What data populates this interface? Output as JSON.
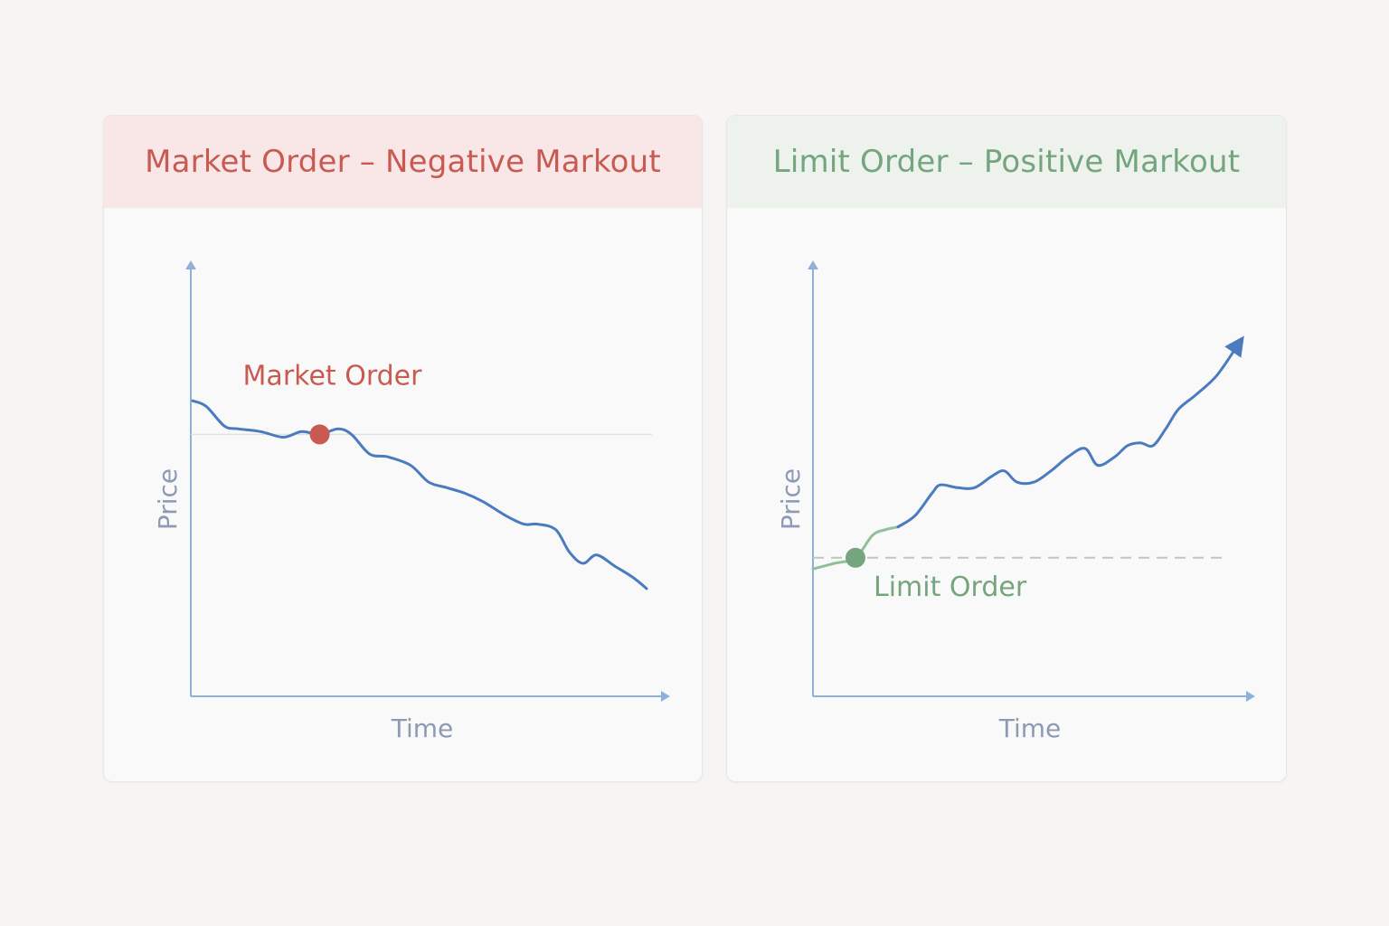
{
  "chart_data": [
    {
      "type": "line",
      "title": "Market Order – Negative Markout",
      "xlabel": "Time",
      "ylabel": "Price",
      "accent_color": "#c95a52",
      "line_color": "#4a7bbf",
      "xlim": [
        0,
        100
      ],
      "ylim": [
        0,
        100
      ],
      "series": [
        {
          "x": [
            0,
            3,
            7,
            10,
            15,
            20,
            24,
            28,
            32,
            35,
            39,
            43,
            48,
            52,
            56,
            60,
            64,
            69,
            73,
            76,
            80,
            83,
            86,
            89,
            93,
            97,
            100
          ],
          "y": [
            78,
            76,
            69,
            68,
            67,
            65,
            67,
            66,
            68,
            66,
            59,
            58,
            55,
            49,
            47,
            45,
            42,
            37,
            34,
            34,
            32,
            24,
            20,
            23,
            19,
            15,
            11
          ]
        }
      ],
      "annotation": {
        "label": "Market Order",
        "x": 28,
        "y": 66
      },
      "reference_y": 66
    },
    {
      "type": "line",
      "title": "Limit Order – Positive Markout",
      "xlabel": "Time",
      "ylabel": "Price",
      "accent_color": "#74a57e",
      "line_color": "#4a7bbf",
      "xlim": [
        0,
        100
      ],
      "ylim": [
        0,
        100
      ],
      "series": [
        {
          "x": [
            0,
            5,
            10,
            14,
            17,
            20,
            24,
            28,
            30,
            34,
            38,
            42,
            45,
            48,
            52,
            56,
            60,
            64,
            67,
            71,
            74,
            77,
            80,
            83,
            86,
            90,
            95,
            100
          ],
          "y": [
            18,
            20,
            22,
            30,
            32,
            33,
            37,
            45,
            48,
            47,
            47,
            51,
            53,
            49,
            49,
            53,
            58,
            61,
            55,
            58,
            62,
            63,
            62,
            68,
            75,
            80,
            87,
            98
          ]
        }
      ],
      "annotation": {
        "label": "Limit Order",
        "x": 10,
        "y": 22
      },
      "reference_y": 22
    }
  ]
}
